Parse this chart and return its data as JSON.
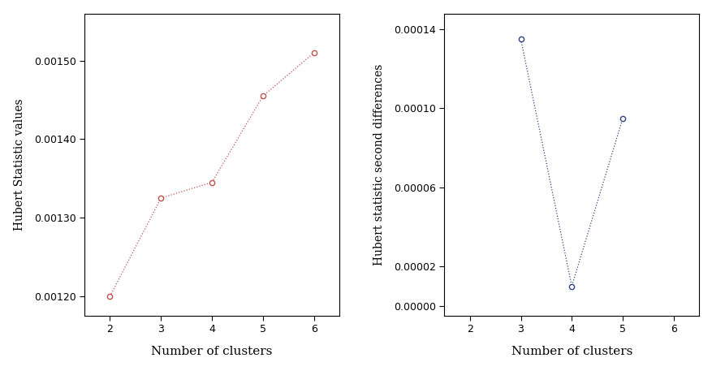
{
  "left": {
    "x": [
      2,
      3,
      4,
      5,
      6
    ],
    "y": [
      0.0012,
      0.001325,
      0.001345,
      0.001455,
      0.00151
    ],
    "color": "#c0504d",
    "ylabel": "Hubert Statistic values",
    "xlabel": "Number of clusters",
    "xlim": [
      1.5,
      6.5
    ],
    "ylim": [
      0.001175,
      0.00156
    ],
    "yticks": [
      0.0012,
      0.0013,
      0.0014,
      0.0015
    ],
    "xticks": [
      2,
      3,
      4,
      5,
      6
    ]
  },
  "right": {
    "x": [
      3,
      4,
      5
    ],
    "y": [
      0.000135,
      1e-05,
      9.5e-05
    ],
    "color": "#2e4380",
    "ylabel": "Hubert statistic second differences",
    "xlabel": "Number of clusters",
    "xlim": [
      1.5,
      6.5
    ],
    "ylim": [
      -5e-06,
      0.000148
    ],
    "yticks": [
      0.0,
      2e-05,
      6e-05,
      0.0001,
      0.00014
    ],
    "xticks": [
      2,
      3,
      4,
      5,
      6
    ]
  },
  "bg_color": "#ffffff",
  "plot_bg_color": "#ffffff"
}
